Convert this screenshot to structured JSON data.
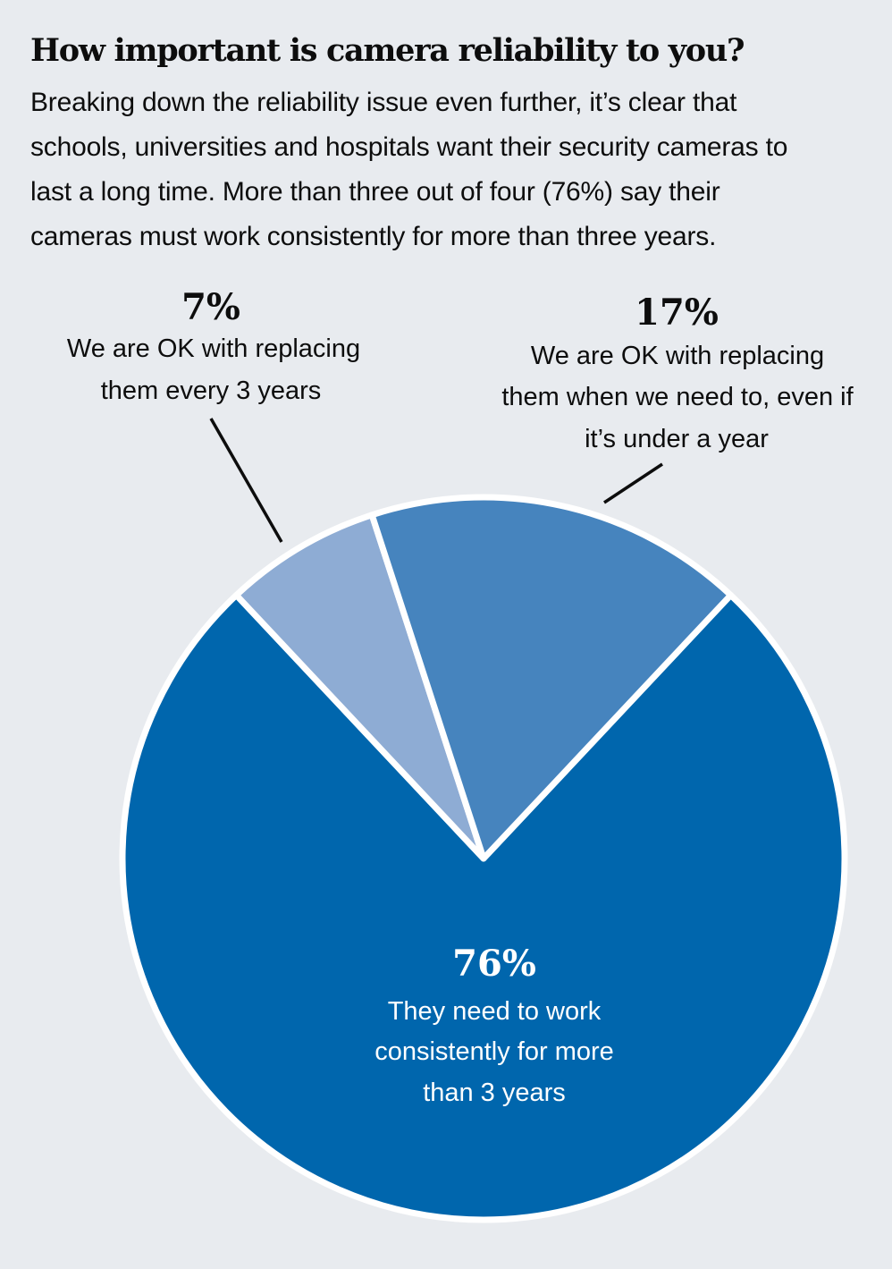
{
  "heading": "How important is camera reliability to you?",
  "intro_lines": [
    "Breaking down the reliability issue even further, it’s clear that",
    "schools, universities and hospitals want their security cameras to",
    "last a long time. More than three out of four (76%) say their",
    "cameras must work consistently for more than three years."
  ],
  "chart_data": {
    "type": "pie",
    "slices": [
      {
        "value": 76,
        "percent_label": "76%",
        "label_lines": [
          "They need to work",
          "consistently for more",
          "than 3 years"
        ],
        "color": "#0066ad"
      },
      {
        "value": 7,
        "percent_label": "7%",
        "label_lines": [
          "We are OK with replacing",
          "them every 3 years"
        ],
        "color": "#8eacd4"
      },
      {
        "value": 17,
        "percent_label": "17%",
        "label_lines": [
          "We are OK with replacing",
          "them when we need to, even if",
          "it’s under a year"
        ],
        "color": "#4684be"
      }
    ],
    "separator_color": "#ffffff",
    "label_text_color_inside": "#ffffff",
    "label_text_color_outside": "#0d0d0d",
    "leader_line_color": "#0d0d0d"
  }
}
